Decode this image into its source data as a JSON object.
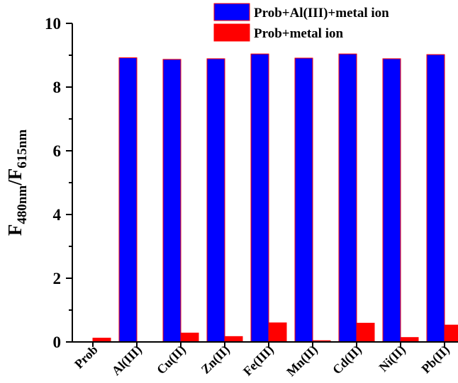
{
  "chart_data": {
    "type": "bar",
    "categories": [
      "Prob",
      "Al(III)",
      "Cu(II)",
      "Zn(II)",
      "Fe(III)",
      "Mn(II)",
      "Cd(II)",
      "Ni(II)",
      "Pb(II)"
    ],
    "series": [
      {
        "name": "Prob+Al(III)+metal ion",
        "color": "#0000ff",
        "values": [
          null,
          8.92,
          8.87,
          8.89,
          9.04,
          8.91,
          9.04,
          8.89,
          9.02
        ]
      },
      {
        "name": "Prob+metal ion",
        "color": "#ff0000",
        "values": [
          0.12,
          null,
          0.28,
          0.17,
          0.6,
          0.04,
          0.59,
          0.14,
          0.53
        ]
      }
    ],
    "ylabel": {
      "main_1": "F",
      "sub_1": "480nm",
      "main_2": "/F",
      "sub_2": "615nm"
    },
    "yticks": [
      "0",
      "2",
      "4",
      "6",
      "8",
      "10"
    ],
    "ylim": [
      0,
      10
    ],
    "legend_position": "top-right",
    "bar_edge_color": "#ff0000",
    "grid": false
  }
}
